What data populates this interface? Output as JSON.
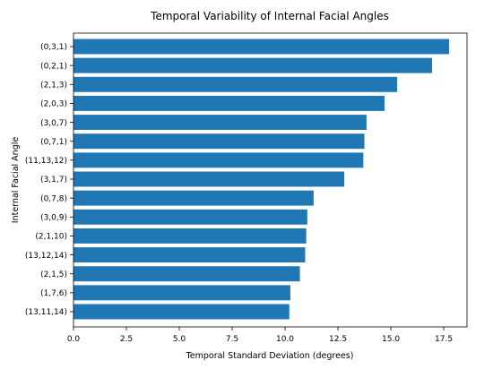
{
  "chart_data": {
    "type": "bar",
    "orientation": "horizontal",
    "title": "Temporal Variability of Internal Facial Angles",
    "xlabel": "Temporal Standard Deviation (degrees)",
    "ylabel": "Internal Facial Angle",
    "categories": [
      "(0,3,1)",
      "(0,2,1)",
      "(2,1,3)",
      "(2,0,3)",
      "(3,0,7)",
      "(0,7,1)",
      "(11,13,12)",
      "(3,1,7)",
      "(0,7,8)",
      "(3,0,9)",
      "(2,1,10)",
      "(13,12,14)",
      "(2,1,5)",
      "(1,7,6)",
      "(13,11,14)"
    ],
    "values": [
      17.75,
      16.95,
      15.3,
      14.7,
      13.85,
      13.75,
      13.7,
      12.8,
      11.35,
      11.05,
      11.0,
      10.95,
      10.7,
      10.25,
      10.2
    ],
    "xlim": [
      0,
      18.6
    ],
    "xticks": [
      "0.0",
      "2.5",
      "5.0",
      "7.5",
      "10.0",
      "12.5",
      "15.0",
      "17.5"
    ],
    "bar_color": "#1f77b4",
    "grid": false
  }
}
